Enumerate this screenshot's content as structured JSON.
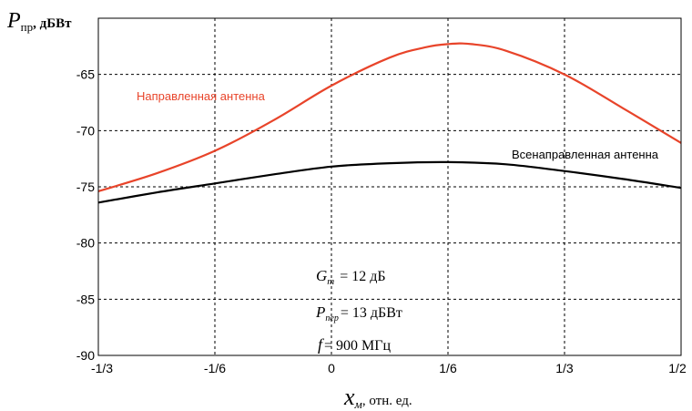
{
  "chart_data": {
    "type": "line",
    "ylabel": {
      "main": "P",
      "sub": "пр",
      "unit": ", дБВт"
    },
    "xlabel": {
      "main": "x",
      "sub": "м",
      "unit": ", отн. ед."
    },
    "xlim": [
      -0.33333,
      0.5
    ],
    "ylim": [
      -90,
      -60
    ],
    "grid": true,
    "x_ticks": [
      {
        "value": -0.33333,
        "label": "-1/3"
      },
      {
        "value": -0.16667,
        "label": "-1/6"
      },
      {
        "value": 0,
        "label": "0"
      },
      {
        "value": 0.16667,
        "label": "1/6"
      },
      {
        "value": 0.33333,
        "label": "1/3"
      },
      {
        "value": 0.5,
        "label": "1/2"
      }
    ],
    "y_ticks": [
      {
        "value": -65,
        "label": "-65"
      },
      {
        "value": -70,
        "label": "-70"
      },
      {
        "value": -75,
        "label": "-75"
      },
      {
        "value": -80,
        "label": "-80"
      },
      {
        "value": -85,
        "label": "-85"
      },
      {
        "value": -90,
        "label": "-90"
      }
    ],
    "series": [
      {
        "name": "Направленная антенна",
        "color": "#e8442a",
        "x": [
          -0.3333,
          -0.25,
          -0.1667,
          -0.0833,
          0,
          0.0833,
          0.1333,
          0.1667,
          0.2,
          0.25,
          0.3333,
          0.4167,
          0.5
        ],
        "y": [
          -75.4,
          -73.8,
          -71.8,
          -69.1,
          -66.0,
          -63.5,
          -62.6,
          -62.3,
          -62.3,
          -62.9,
          -65.0,
          -68.0,
          -71.1
        ]
      },
      {
        "name": "Всенаправленная антенна",
        "color": "#000000",
        "x": [
          -0.3333,
          -0.25,
          -0.1667,
          -0.0833,
          0,
          0.0833,
          0.1667,
          0.25,
          0.3333,
          0.4167,
          0.5
        ],
        "y": [
          -76.4,
          -75.5,
          -74.7,
          -73.9,
          -73.2,
          -72.9,
          -72.8,
          -73.0,
          -73.6,
          -74.3,
          -75.1
        ]
      }
    ],
    "annotations": {
      "gain": {
        "sym": "G",
        "sub": "m",
        "value": "= 12 дБ"
      },
      "power": {
        "sym": "P",
        "sub": "пер",
        "value": "= 13 дБВт"
      },
      "freq": {
        "sym": "f",
        "value": "= 900 МГц"
      }
    }
  }
}
